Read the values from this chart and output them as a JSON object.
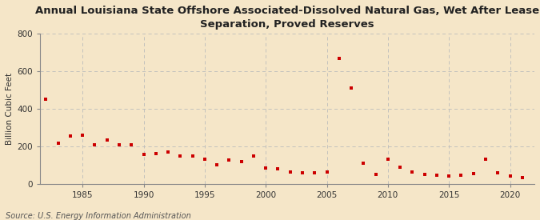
{
  "title": "Annual Louisiana State Offshore Associated-Dissolved Natural Gas, Wet After Lease\nSeparation, Proved Reserves",
  "ylabel": "Billion Cubic Feet",
  "source": "Source: U.S. Energy Information Administration",
  "background_color": "#f5e6c8",
  "plot_bg_color": "#f5e6c8",
  "marker_color": "#cc0000",
  "years": [
    1982,
    1983,
    1984,
    1985,
    1986,
    1987,
    1988,
    1989,
    1990,
    1991,
    1992,
    1993,
    1994,
    1995,
    1996,
    1997,
    1998,
    1999,
    2000,
    2001,
    2002,
    2003,
    2004,
    2005,
    2006,
    2007,
    2008,
    2009,
    2010,
    2011,
    2012,
    2013,
    2014,
    2015,
    2016,
    2017,
    2018,
    2019,
    2020,
    2021
  ],
  "values": [
    450,
    215,
    255,
    260,
    210,
    235,
    207,
    207,
    155,
    160,
    170,
    150,
    150,
    130,
    100,
    125,
    120,
    150,
    85,
    80,
    65,
    58,
    60,
    62,
    670,
    510,
    110,
    50,
    130,
    90,
    65,
    50,
    45,
    43,
    45,
    55,
    130,
    60,
    40,
    33
  ],
  "ylim": [
    0,
    800
  ],
  "yticks": [
    0,
    200,
    400,
    600,
    800
  ],
  "xlim": [
    1981.5,
    2022
  ],
  "xticks": [
    1985,
    1990,
    1995,
    2000,
    2005,
    2010,
    2015,
    2020
  ],
  "grid_color": "#bbbbbb",
  "title_fontsize": 9.5,
  "label_fontsize": 7.5,
  "tick_fontsize": 7.5,
  "source_fontsize": 7
}
